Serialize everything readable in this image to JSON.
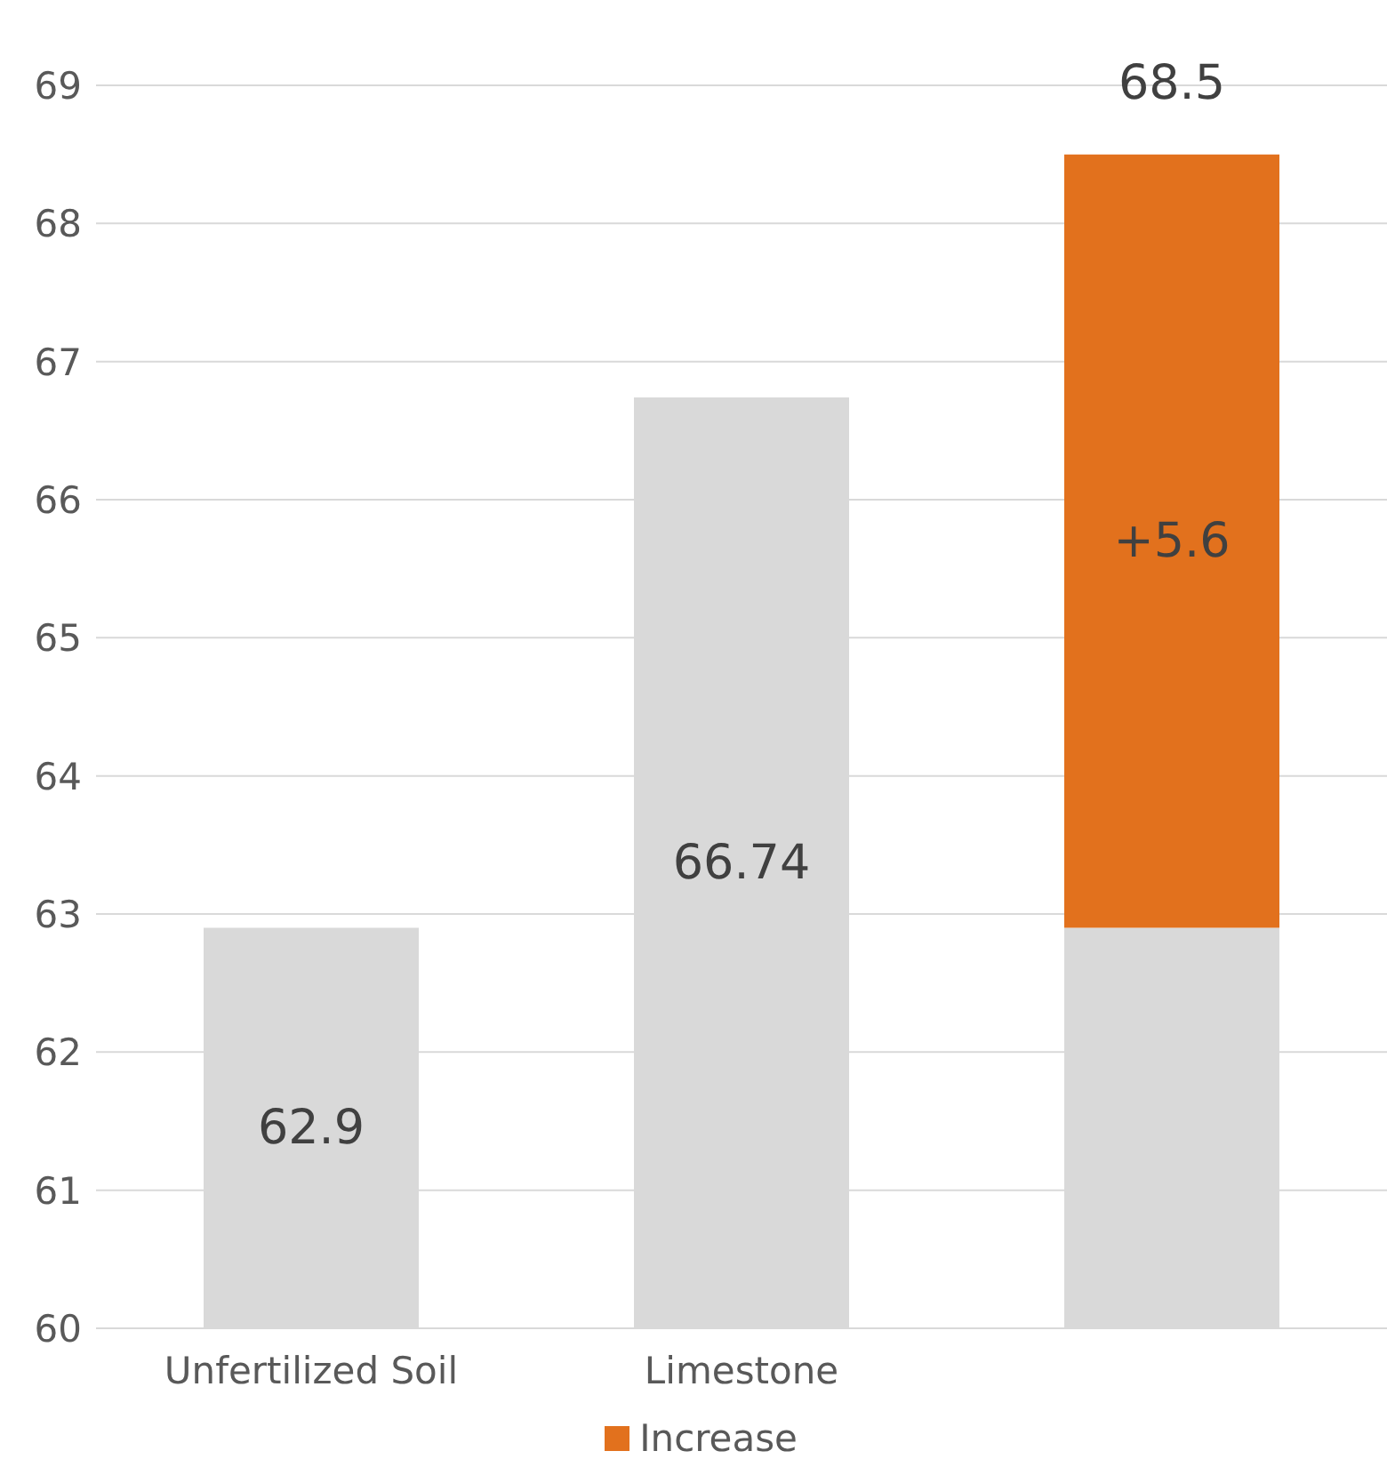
{
  "chart_data": {
    "type": "bar",
    "categories": [
      "Unfertilized Soil",
      "Limestone",
      null
    ],
    "series": [
      {
        "color": "#d9d9d9",
        "values": [
          62.9,
          66.74,
          62.9
        ],
        "value_labels": [
          "62.9",
          "66.74",
          null
        ]
      },
      {
        "name": "Increase",
        "color": "#e2711d",
        "values": [
          null,
          null,
          5.6
        ],
        "base": [
          null,
          null,
          62.9
        ],
        "value_labels": [
          null,
          null,
          "+5.6"
        ]
      }
    ],
    "totals": [
      null,
      null,
      "68.5"
    ],
    "ylim": [
      60,
      69
    ],
    "yticks": [
      60,
      61,
      62,
      63,
      64,
      65,
      66,
      67,
      68,
      69
    ],
    "grid": "y",
    "legend": "bottom"
  }
}
